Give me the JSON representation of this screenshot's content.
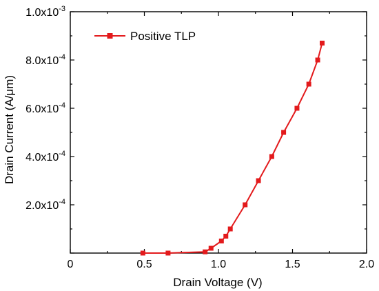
{
  "chart_data": {
    "type": "line",
    "title": "",
    "xlabel": "Drain Voltage (V)",
    "ylabel": "Drain Current (A/μm)",
    "xlim": [
      0,
      2.0
    ],
    "ylim": [
      0,
      0.001
    ],
    "grid": false,
    "legend_position": "top-left",
    "x_ticks": [
      {
        "value": 0.0,
        "label": "0"
      },
      {
        "value": 0.5,
        "label": "0.5"
      },
      {
        "value": 1.0,
        "label": "1.0"
      },
      {
        "value": 1.5,
        "label": "1.5"
      },
      {
        "value": 2.0,
        "label": "2.0"
      }
    ],
    "y_ticks": [
      {
        "value": 0.0002,
        "mantissa": "2.0x10",
        "exponent": "-4"
      },
      {
        "value": 0.0004,
        "mantissa": "4.0x10",
        "exponent": "-4"
      },
      {
        "value": 0.0006,
        "mantissa": "6.0x10",
        "exponent": "-4"
      },
      {
        "value": 0.0008,
        "mantissa": "8.0x10",
        "exponent": "-4"
      },
      {
        "value": 0.001,
        "mantissa": "1.0x10",
        "exponent": "-3"
      }
    ],
    "series": [
      {
        "name": "Positive TLP",
        "color": "#e31a1c",
        "marker": "square",
        "x": [
          0.49,
          0.66,
          0.91,
          0.95,
          1.02,
          1.05,
          1.08,
          1.18,
          1.27,
          1.36,
          1.44,
          1.53,
          1.61,
          1.67,
          1.7
        ],
        "y": [
          0.0,
          0.0,
          5e-06,
          2e-05,
          5e-05,
          7e-05,
          0.0001,
          0.0002,
          0.0003,
          0.0004,
          0.0005,
          0.0006,
          0.0007,
          0.0008,
          0.00087
        ]
      }
    ]
  }
}
